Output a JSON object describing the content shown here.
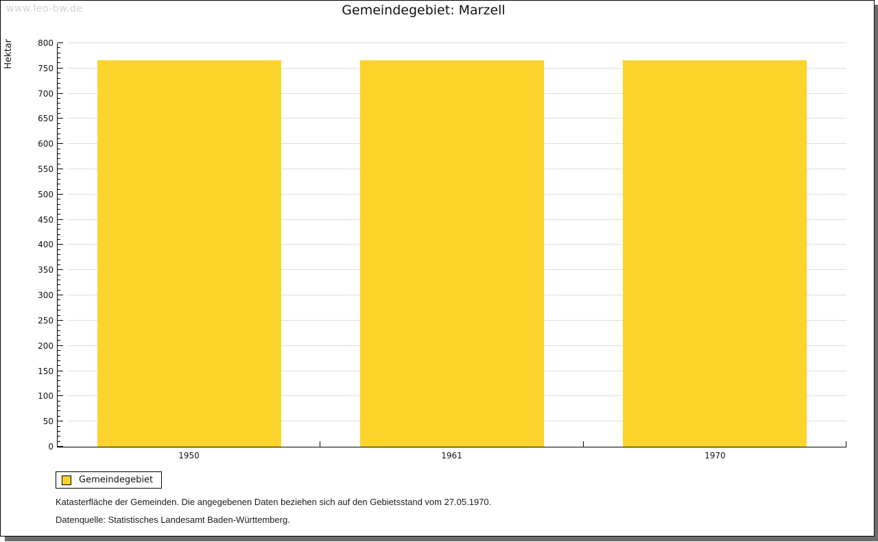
{
  "watermark": "www.leo-bw.de",
  "header": {
    "title": "Gemeindegebiet: Marzell"
  },
  "legend": {
    "label": "Gemeindegebiet",
    "swatch_color": "#fcd42c"
  },
  "footnotes": {
    "line1": "Katasterfläche der Gemeinden. Die angegebenen Daten beziehen sich auf den Gebietsstand vom 27.05.1970.",
    "line2": "Datenquelle: Statistisches Landesamt Baden-Württemberg."
  },
  "colors": {
    "bar": "#fcd42c",
    "grid": "#dddddd",
    "axis": "#000000",
    "frame_shadow": "#6e6e6e",
    "watermark": "#d2d2d2"
  },
  "chart_data": {
    "type": "bar",
    "title": "Gemeindegebiet: Marzell",
    "ylabel": "Hektar",
    "xlabel": "",
    "categories": [
      "1950",
      "1961",
      "1970"
    ],
    "series": [
      {
        "name": "Gemeindegebiet",
        "values": [
          766,
          766,
          766
        ]
      }
    ],
    "ylim": [
      0,
      800
    ],
    "ytick_step": 50,
    "minor_tick_step": 10,
    "grid": true,
    "bar_color": "#fcd42c",
    "bar_width_fraction": 0.7,
    "legend_position": "bottom-left"
  }
}
